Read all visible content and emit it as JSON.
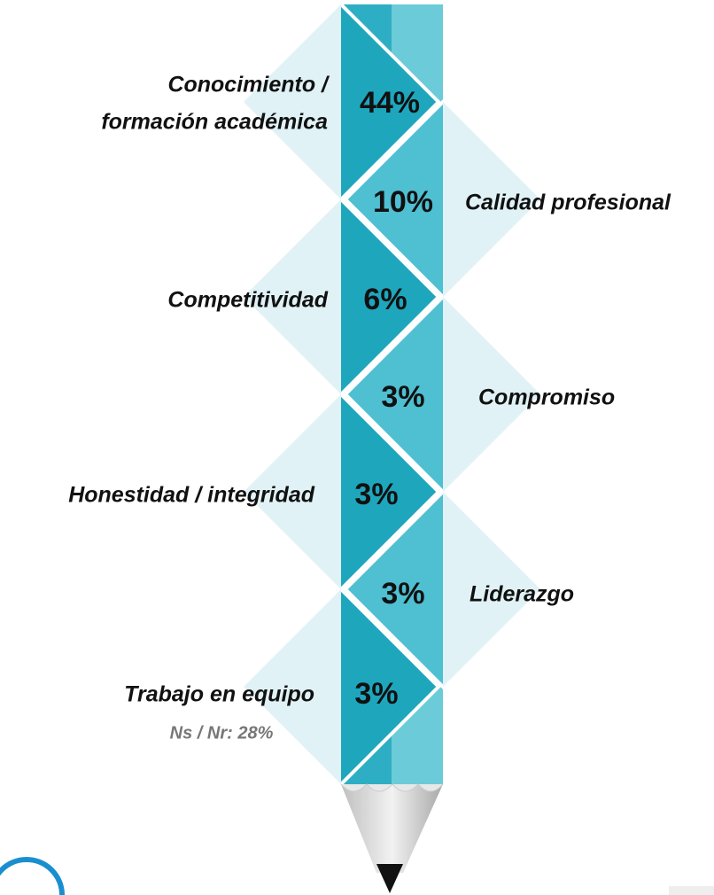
{
  "items": [
    {
      "label": [
        "Conocimiento /",
        "formación académica"
      ],
      "value": "44%"
    },
    {
      "label": [
        "Calidad profesional"
      ],
      "value": "10%"
    },
    {
      "label": [
        "Competitividad"
      ],
      "value": "6%"
    },
    {
      "label": [
        "Compromiso"
      ],
      "value": "3%"
    },
    {
      "label": [
        "Honestidad / integridad"
      ],
      "value": "3%"
    },
    {
      "label": [
        "Liderazgo"
      ],
      "value": "3%"
    },
    {
      "label": [
        "Trabajo en equipo"
      ],
      "value": "3%"
    }
  ],
  "note": "Ns / Nr: 28%"
}
